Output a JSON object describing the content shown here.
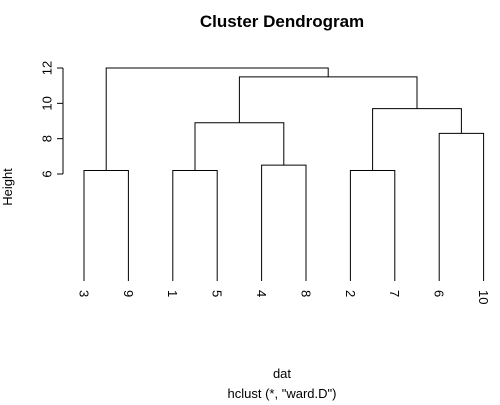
{
  "chart_data": {
    "type": "dendrogram",
    "title": "Cluster Dendrogram",
    "ylabel": "Height",
    "xlabel": "dat",
    "sub": "hclust (*, \"ward.D\")",
    "ylim": [
      6,
      12
    ],
    "yticks": [
      6,
      8,
      10,
      12
    ],
    "leaf_order": [
      "3",
      "9",
      "1",
      "5",
      "4",
      "8",
      "2",
      "7",
      "6",
      "10"
    ],
    "merges": [
      {
        "id": "m1",
        "left": "3",
        "right": "9",
        "height": 6.2
      },
      {
        "id": "m2",
        "left": "1",
        "right": "5",
        "height": 6.2
      },
      {
        "id": "m3",
        "left": "4",
        "right": "8",
        "height": 6.5
      },
      {
        "id": "m4",
        "left": "2",
        "right": "7",
        "height": 6.2
      },
      {
        "id": "m5",
        "left": "6",
        "right": "10",
        "height": 8.3
      },
      {
        "id": "m6",
        "left": "m2",
        "right": "m3",
        "height": 8.9
      },
      {
        "id": "m7",
        "left": "m4",
        "right": "m5",
        "height": 9.7
      },
      {
        "id": "m8",
        "left": "m6",
        "right": "m7",
        "height": 11.5
      },
      {
        "id": "m9",
        "left": "m1",
        "right": "m8",
        "height": 12.0
      }
    ]
  }
}
